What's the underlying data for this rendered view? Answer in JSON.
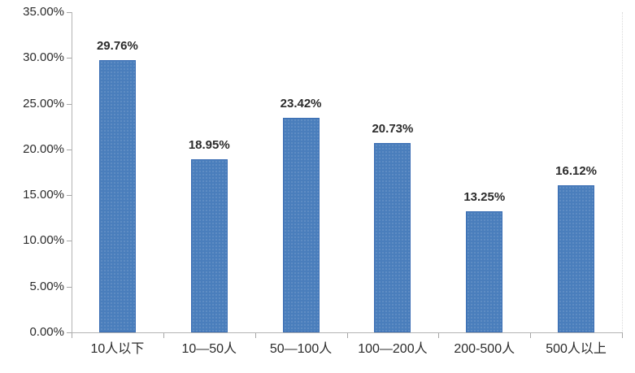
{
  "chart_data": {
    "type": "bar",
    "title": "",
    "categories": [
      "10人以下",
      "10—50人",
      "50—100人",
      "100—200人",
      "200-500人",
      "500人以上"
    ],
    "values": [
      29.76,
      18.95,
      23.42,
      20.73,
      13.25,
      16.12
    ],
    "data_labels": [
      "29.76%",
      "18.95%",
      "23.42%",
      "20.73%",
      "13.25%",
      "16.12%"
    ],
    "xlabel": "",
    "ylabel": "",
    "ylim": [
      0,
      35
    ],
    "y_tick_step": 5,
    "y_tick_labels": [
      "0.00%",
      "5.00%",
      "10.00%",
      "15.00%",
      "20.00%",
      "25.00%",
      "30.00%",
      "35.00%"
    ],
    "grid": false,
    "legend_position": "none",
    "bar_color": "#4a7ebc",
    "bar_border_color": "#3a6db3",
    "axis_color": "#b3b3b3",
    "tick_color": "#a6a6a6",
    "text_color": "#2b2b2b"
  }
}
